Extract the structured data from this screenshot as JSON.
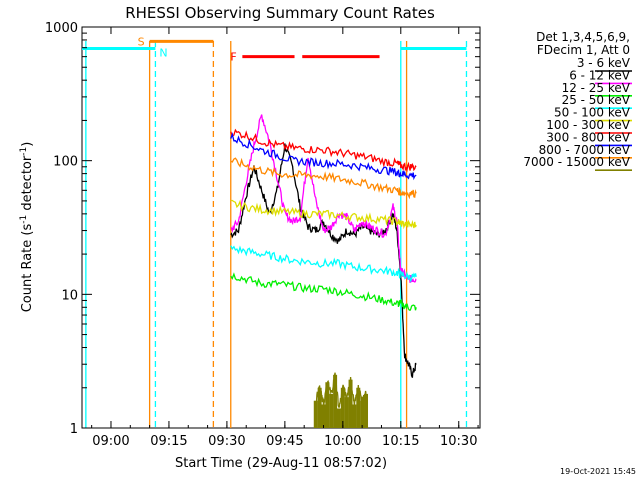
{
  "chart_data": {
    "type": "line",
    "title": "RHESSI Observing Summary Count Rates",
    "xlabel": "Start Time (29-Aug-11 08:57:02)",
    "ylabel_main": "Count Rate (s",
    "ylabel_sup1": "-1",
    "ylabel_mid": " detector",
    "ylabel_sup2": "-1",
    "ylabel_end": ")",
    "yscale": "log",
    "ylim": [
      1,
      1000
    ],
    "xlim_minutes": [
      -4.5,
      98.5
    ],
    "x_ticks": [
      {
        "label": "09:00",
        "minute": 3
      },
      {
        "label": "09:15",
        "minute": 18
      },
      {
        "label": "09:30",
        "minute": 33
      },
      {
        "label": "09:45",
        "minute": 48
      },
      {
        "label": "10:00",
        "minute": 63
      },
      {
        "label": "10:15",
        "minute": 78
      },
      {
        "label": "10:30",
        "minute": 93
      }
    ],
    "y_ticks": [
      {
        "label": "1",
        "value": 1
      },
      {
        "label": "10",
        "value": 10
      },
      {
        "label": "100",
        "value": 100
      },
      {
        "label": "1000",
        "value": 1000
      }
    ],
    "legend_header": [
      "Det 1,3,4,5,6,9,",
      "FDecim 1, Att 0"
    ],
    "legend_placement": "top-right, outside plot",
    "footer_date": "19-Oct-2021 15:45",
    "series": [
      {
        "name": "3 - 6 keV",
        "color": "#000000",
        "x": [
          34,
          36,
          38,
          40,
          42,
          44,
          46,
          48,
          50,
          52,
          54,
          56,
          58,
          60,
          62,
          64,
          66,
          68,
          70,
          72,
          74,
          76,
          77,
          78,
          79,
          80,
          81,
          82
        ],
        "y": [
          28,
          30,
          55,
          90,
          60,
          40,
          60,
          130,
          90,
          45,
          32,
          30,
          35,
          28,
          25,
          30,
          28,
          32,
          30,
          28,
          30,
          40,
          30,
          14,
          3.5,
          3,
          2.5,
          3
        ]
      },
      {
        "name": "6 - 12 keV",
        "color": "#ff00ff",
        "x": [
          34,
          36,
          38,
          40,
          42,
          44,
          46,
          48,
          50,
          52,
          54,
          56,
          58,
          60,
          62,
          64,
          66,
          68,
          70,
          72,
          74,
          76,
          77,
          78,
          79,
          80,
          81,
          82
        ],
        "y": [
          30,
          35,
          70,
          130,
          220,
          140,
          75,
          40,
          35,
          38,
          110,
          50,
          30,
          32,
          40,
          38,
          30,
          35,
          32,
          30,
          28,
          45,
          35,
          15,
          14,
          13,
          13,
          13
        ]
      },
      {
        "name": "12 - 25 keV",
        "color": "#00ee00",
        "x": [
          34,
          38,
          42,
          46,
          50,
          54,
          58,
          62,
          66,
          70,
          74,
          77,
          78,
          80,
          82
        ],
        "y": [
          14,
          13,
          12,
          12,
          11.5,
          11,
          11,
          10.5,
          10,
          9.5,
          9,
          8.5,
          8.5,
          8,
          8
        ]
      },
      {
        "name": "25 - 50 keV",
        "color": "#00ffff",
        "x": [
          34,
          38,
          42,
          46,
          50,
          54,
          58,
          62,
          66,
          70,
          74,
          77,
          78,
          80,
          82
        ],
        "y": [
          22,
          21,
          20,
          19,
          18,
          17.5,
          17,
          17,
          16,
          15.5,
          15,
          14.5,
          14,
          13.5,
          13.5
        ]
      },
      {
        "name": "50 - 100 keV",
        "color": "#dddd00",
        "x": [
          34,
          38,
          42,
          46,
          50,
          54,
          58,
          62,
          66,
          70,
          74,
          77,
          78,
          80,
          82
        ],
        "y": [
          48,
          45,
          43,
          42,
          41,
          40,
          40,
          39,
          38,
          37,
          36,
          35,
          34,
          33,
          33
        ]
      },
      {
        "name": "100 - 300 keV",
        "color": "#ff0000",
        "x": [
          34,
          38,
          42,
          46,
          50,
          54,
          58,
          62,
          66,
          70,
          74,
          77,
          78,
          80,
          82
        ],
        "y": [
          165,
          155,
          140,
          130,
          125,
          122,
          120,
          115,
          110,
          105,
          98,
          95,
          92,
          90,
          90
        ]
      },
      {
        "name": "300 - 800 keV",
        "color": "#0000ff",
        "x": [
          34,
          38,
          42,
          46,
          50,
          54,
          58,
          62,
          66,
          70,
          74,
          77,
          78,
          80,
          82
        ],
        "y": [
          150,
          135,
          120,
          110,
          100,
          98,
          96,
          95,
          92,
          88,
          85,
          82,
          80,
          78,
          78
        ]
      },
      {
        "name": "800 - 7000 keV",
        "color": "#ff8800",
        "x": [
          34,
          38,
          42,
          46,
          50,
          54,
          58,
          62,
          66,
          70,
          74,
          77,
          78,
          80,
          82
        ],
        "y": [
          100,
          92,
          85,
          80,
          78,
          78,
          76,
          73,
          70,
          66,
          62,
          60,
          58,
          57,
          57
        ]
      },
      {
        "name": "7000 - 15000 keV",
        "color": "#808000",
        "x": [
          56,
          57,
          58,
          59,
          60,
          61,
          62,
          63,
          64,
          65,
          66,
          67,
          68,
          69
        ],
        "y": [
          1.6,
          2,
          1.5,
          2.2,
          1.8,
          2.5,
          1.4,
          2,
          1.7,
          2.3,
          1.5,
          2,
          1.6,
          1.8
        ]
      }
    ],
    "state_markers": [
      {
        "label": "S",
        "color": "#ff8800",
        "x_start": 13.0,
        "x_end": 29.5,
        "level": 780
      },
      {
        "label": "N",
        "color": "#00ffff",
        "x_start": 14.5,
        "x_end": 14.5,
        "level": 690
      },
      {
        "label": "F",
        "color": "#ff0000",
        "x_start": 37.0,
        "x_end": 50.5,
        "x_start2": 52.5,
        "x_end2": 72.5,
        "level": 600
      }
    ],
    "vertical_lines": [
      {
        "minute": 13.0,
        "color": "#ff8800",
        "style": "solid"
      },
      {
        "minute": 14.5,
        "color": "#00ffff",
        "style": "dashed"
      },
      {
        "minute": 29.5,
        "color": "#ff8800",
        "style": "dashed"
      },
      {
        "minute": 34.0,
        "color": "#ff8800",
        "style": "solid"
      },
      {
        "minute": 78.0,
        "color": "#00ffff",
        "style": "solid"
      },
      {
        "minute": 79.5,
        "color": "#ff8800",
        "style": "solid"
      },
      {
        "minute": 95.0,
        "color": "#00ffff",
        "style": "dashed"
      },
      {
        "minute": -3.5,
        "color": "#00ffff",
        "style": "solid"
      }
    ],
    "night_segments": [
      {
        "color": "#00ffff",
        "x_start": -4.5,
        "x_end": 14.5,
        "level": 690
      },
      {
        "color": "#00ffff",
        "x_start": 78.0,
        "x_end": 95.0,
        "level": 690
      }
    ]
  }
}
